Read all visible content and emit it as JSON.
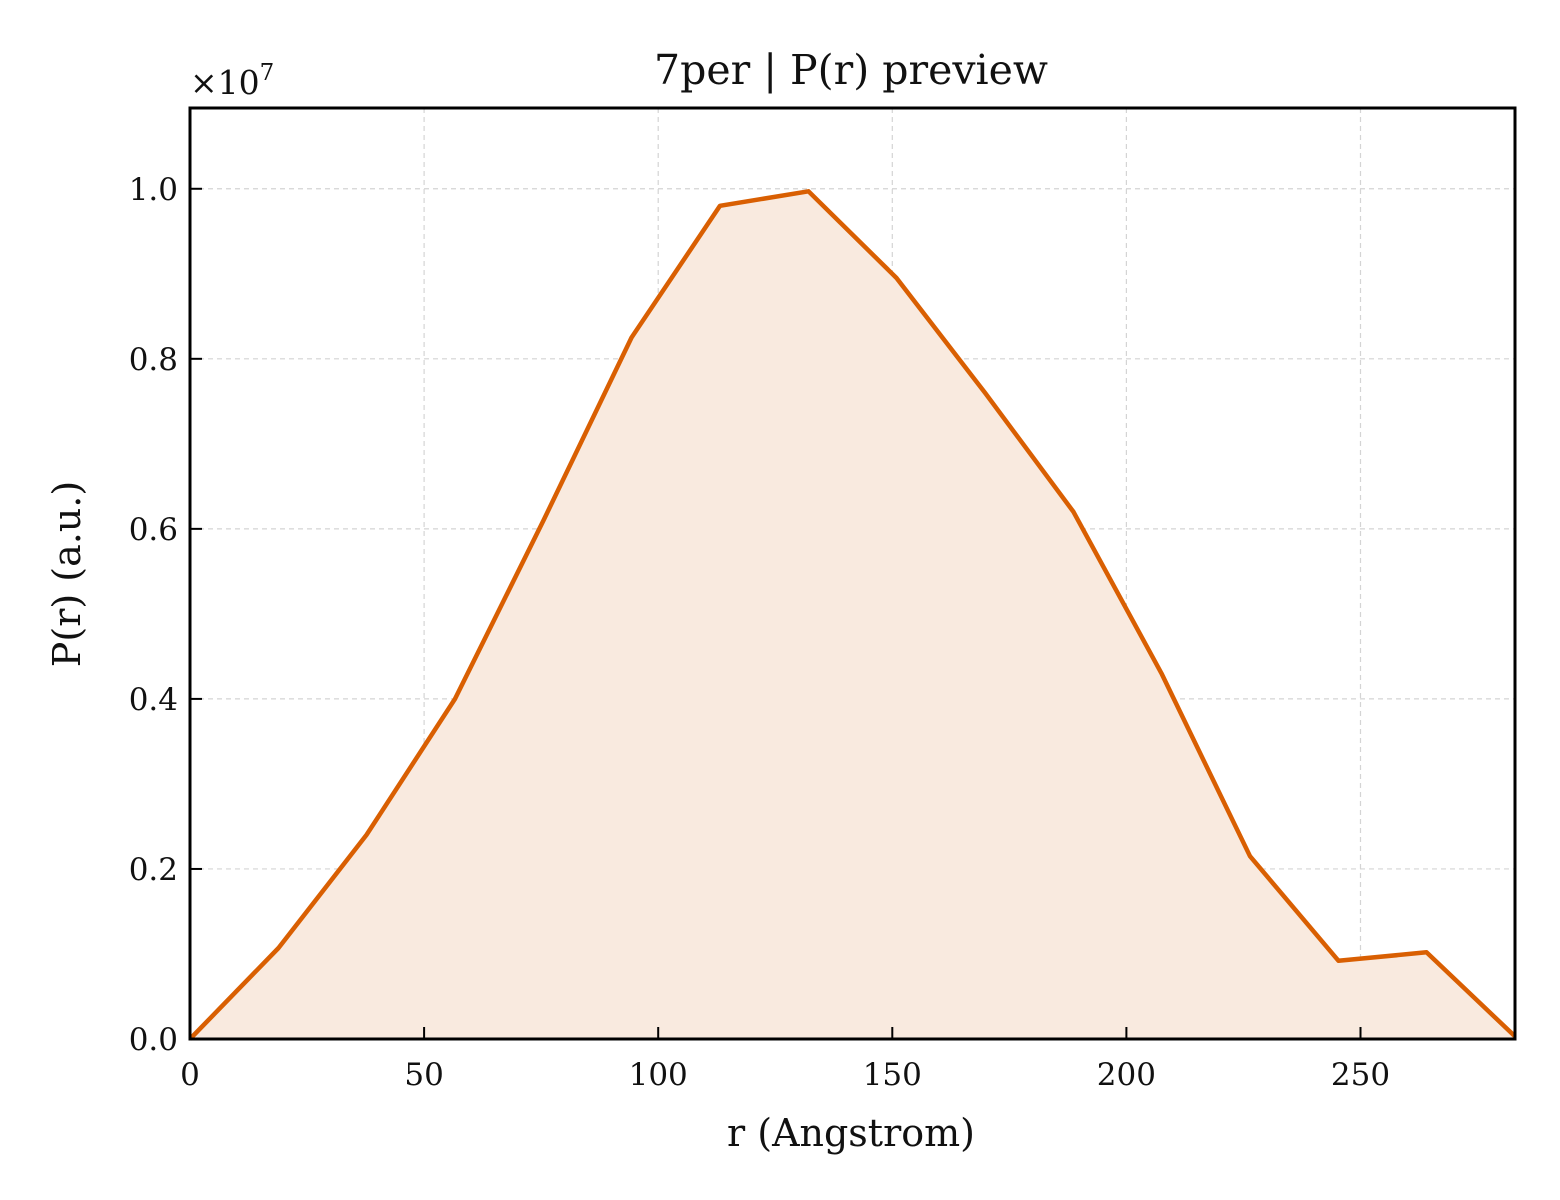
{
  "chart_data": {
    "type": "area",
    "title": "7per | P(r) preview",
    "xlabel": "r (Angstrom)",
    "ylabel": "P(r) (a.u.)",
    "y_multiplier": "×10",
    "y_multiplier_exponent": "7",
    "xlim": [
      0,
      283
    ],
    "ylim": [
      0,
      1.095
    ],
    "xticks": [
      0,
      50,
      100,
      150,
      200,
      250
    ],
    "xtick_labels": [
      "0",
      "50",
      "100",
      "150",
      "200",
      "250"
    ],
    "yticks": [
      0.0,
      0.2,
      0.4,
      0.6,
      0.8,
      1.0
    ],
    "ytick_labels": [
      "0.0",
      "0.2",
      "0.4",
      "0.6",
      "0.8",
      "1.0"
    ],
    "grid": true,
    "line_color": "#d95f02",
    "fill_color": "#f9eadf",
    "series": [
      {
        "x": [
          0,
          18.9,
          37.7,
          56.6,
          75.5,
          94.3,
          113.2,
          132.1,
          150.9,
          169.8,
          188.7,
          207.5,
          226.4,
          245.3,
          264.1,
          283
        ],
        "y": [
          0.0,
          0.107,
          0.24,
          0.4,
          0.61,
          0.825,
          0.98,
          0.997,
          0.895,
          0.76,
          0.62,
          0.43,
          0.215,
          0.092,
          0.102,
          0.003
        ]
      }
    ]
  }
}
